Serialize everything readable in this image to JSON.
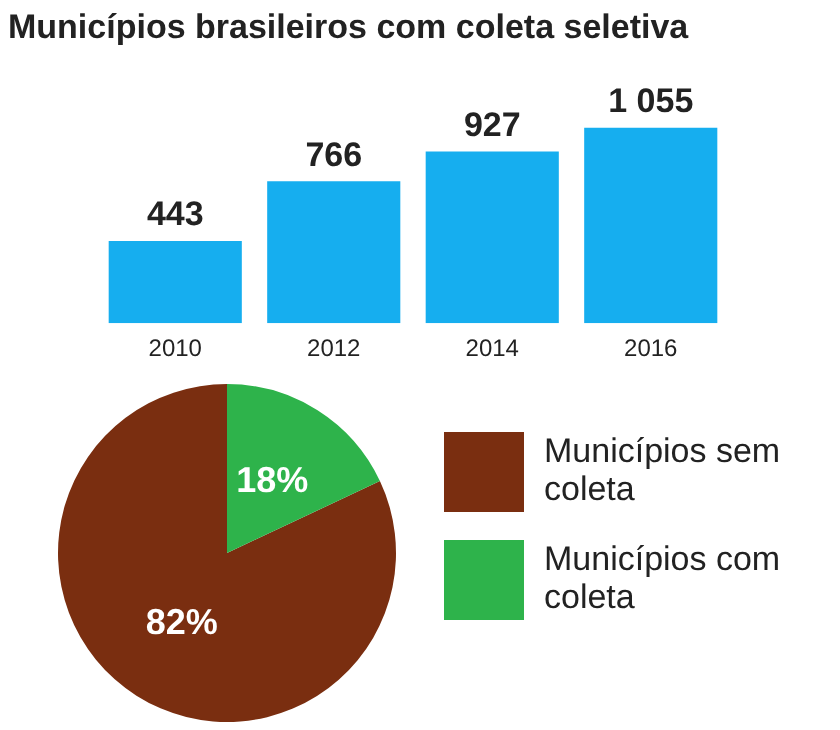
{
  "chart_data": [
    {
      "type": "bar",
      "title": "Municípios brasileiros com coleta seletiva",
      "categories": [
        "2010",
        "2012",
        "2014",
        "2016"
      ],
      "values": [
        443,
        766,
        927,
        1055
      ],
      "color": "#16aeef",
      "value_labels": [
        "443",
        "766",
        "927",
        "1 055"
      ]
    },
    {
      "type": "pie",
      "categories": [
        "Municípios sem coleta",
        "Municípios com coleta"
      ],
      "values": [
        82,
        18
      ],
      "colors": [
        "#7a2e10",
        "#2eb34b"
      ],
      "value_labels": [
        "82%",
        "18%"
      ],
      "legend": "right"
    }
  ]
}
